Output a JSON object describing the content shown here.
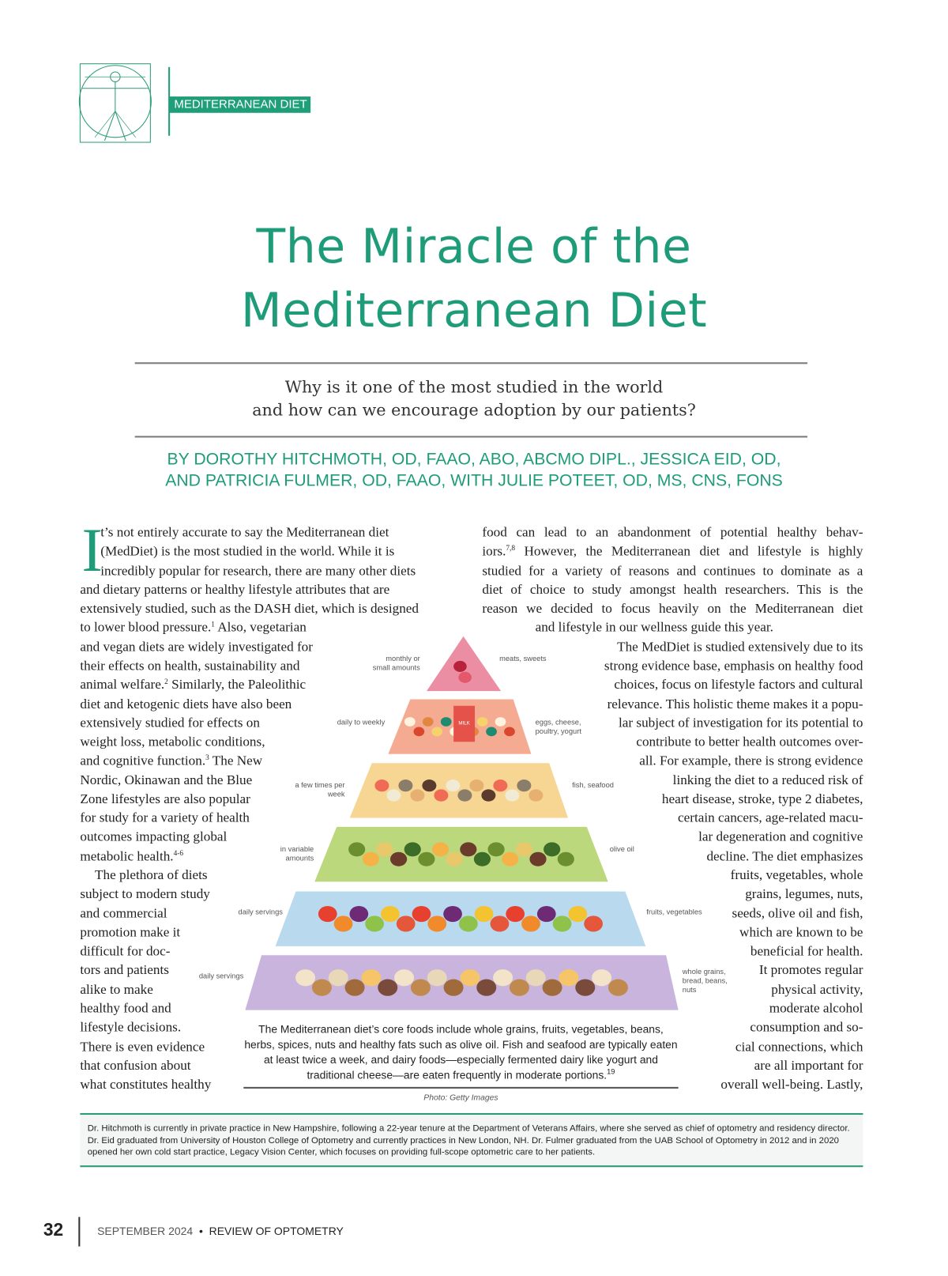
{
  "header": {
    "section_label": "MEDITERRANEAN DIET",
    "logo_icon": "vitruvian-man-icon",
    "accent_color": "#1e9c79"
  },
  "article": {
    "title_line1": "The Miracle of the",
    "title_line2": "Mediterranean Diet",
    "subtitle_line1": "Why is it one of the most studied in the world",
    "subtitle_line2": "and how can we encourage adoption by our patients?",
    "byline_line1": "BY DOROTHY HITCHMOTH, OD, FAAO, ABO, ABCMO DIPL., JESSICA EID, OD,",
    "byline_line2": "AND PATRICIA FULMER, OD, FAAO, WITH JULIE POTEET, OD, MS, CNS, FONS",
    "drop_cap": "I",
    "left_column": [
      "t’s not entirely accurate to say the Mediterranean diet",
      "(MedDiet) is the most studied in the world. While it is",
      "incredibly popular for research, there are many other diets",
      "and dietary patterns or healthy lifestyle attributes that are",
      "extensively studied, such as the DASH diet, which is designed",
      "to lower blood pressure.^1 Also, vegetarian",
      "and vegan diets are widely investigated for",
      "their effects on health, sustainability and",
      "animal welfare.^2 Similarly, the Paleolithic",
      "diet and ketogenic diets have also been",
      "extensively studied for effects on",
      "weight loss, metabolic conditions,",
      "and cognitive function.^3 The New",
      "Nordic, Okinawan and the Blue",
      "Zone lifestyles are also popular",
      "for study for a variety of health",
      "outcomes impacting global",
      "metabolic health.^4-6",
      "The plethora of diets",
      "subject to modern study",
      "and commercial",
      "promotion make it",
      "difficult for doc-",
      "tors and patients",
      "alike to make",
      "healthy food and",
      "lifestyle decisions.",
      "There is even evidence",
      "that confusion about",
      "what constitutes healthy"
    ],
    "right_column": [
      "food can lead to an abandonment of potential healthy behav-",
      "iors.^7,8 However, the Mediterranean diet and lifestyle is highly",
      "studied for a variety of reasons and continues to dominate as a",
      "diet of choice to study amongst health researchers. This is the",
      "reason we decided to focus heavily on the Mediterranean diet",
      "and lifestyle in our wellness guide this year.",
      "The MedDiet is studied extensively due to its",
      "strong evidence base, emphasis on healthy food",
      "choices, focus on lifestyle factors and cultural",
      "relevance. This holistic theme makes it a popu-",
      "lar subject of investigation for its potential to",
      "contribute to better health outcomes over-",
      "all. For example, there is strong evidence",
      "linking the diet to a reduced risk of",
      "heart disease, stroke, type 2 diabetes,",
      "certain cancers, age-related macu-",
      "lar degeneration and cognitive",
      "decline. The diet emphasizes",
      "fruits, vegetables, whole",
      "grains, legumes, nuts,",
      "seeds, olive oil and fish,",
      "which are known to be",
      "beneficial for health.",
      "It promotes regular",
      "physical activity,",
      "moderate alcohol",
      "consumption and so-",
      "cial connections, which",
      "are all important for",
      "overall well-being. Lastly,"
    ]
  },
  "figure": {
    "tiers": [
      {
        "frequency": "monthly or small amounts",
        "foods": "meats, sweets",
        "color": "#ec8ea3"
      },
      {
        "frequency": "daily to weekly",
        "foods": "eggs, cheese, poultry, yogurt",
        "color": "#f5ab92",
        "item_text": "MILK"
      },
      {
        "frequency": "a few times per week",
        "foods": "fish, seafood",
        "color": "#f7d592"
      },
      {
        "frequency": "in variable amounts",
        "foods": "olive oil",
        "color": "#bcd87c"
      },
      {
        "frequency": "daily servings",
        "foods": "fruits, vegetables",
        "color": "#b8d9ee"
      },
      {
        "frequency": "daily servings",
        "foods": "whole grains, bread, beans, nuts",
        "color": "#c8b4dd"
      }
    ],
    "caption": "The Mediterranean diet’s core foods include whole grains, fruits, vegetables, beans, herbs, spices, nuts and healthy fats such as olive oil. Fish and seafood are typically eaten at least twice a week, and dairy foods—especially fermented dairy like yogurt and traditional cheese—are eaten frequently in moderate portions.",
    "caption_ref": "19",
    "credit": "Photo: Getty Images"
  },
  "bio": "Dr. Hitchmoth is currently in private practice in New Hampshire, following a 22-year tenure at the Department of Veterans Affairs, where she served as chief of optometry and residency director. Dr. Eid graduated from University of Houston College of Optometry and currently practices in New London, NH. Dr. Fulmer graduated from the UAB School of Optometry in 2012 and in 2020 opened her own cold start practice, Legacy Vision Center, which focuses on providing full-scope optometric care to her patients.",
  "footer": {
    "page_number": "32",
    "date": "SEPTEMBER 2024",
    "separator": "•",
    "magazine": "REVIEW OF OPTOMETRY"
  }
}
